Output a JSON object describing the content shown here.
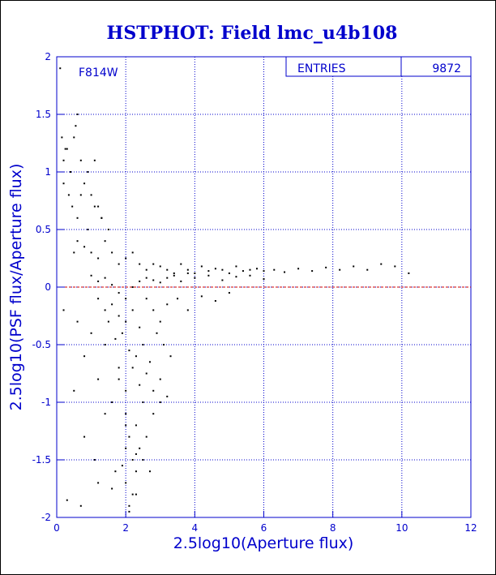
{
  "chart_data": {
    "type": "scatter",
    "title": "HSTPHOT: Field lmc_u4b108",
    "xlabel": "2.5log10(Aperture flux)",
    "ylabel": "2.5log10(PSF flux/Aperture flux)",
    "xlim": [
      0,
      12
    ],
    "ylim": [
      -2,
      2
    ],
    "x_ticks": [
      0,
      2,
      4,
      6,
      8,
      10,
      12
    ],
    "y_ticks": [
      -2,
      -1.5,
      -1,
      -0.5,
      0,
      0.5,
      1,
      1.5,
      2
    ],
    "x_tick_labels": [
      "0",
      "2",
      "4",
      "6",
      "8",
      "10",
      "12"
    ],
    "y_tick_labels": [
      "-2",
      "-1.5",
      "-1",
      "-0.5",
      "0",
      "0.5",
      "1",
      "1.5",
      "2"
    ],
    "grid": true,
    "reference_line_y": 0,
    "series": [
      {
        "name": "F814W",
        "x": [
          0.1,
          0.15,
          0.2,
          0.3,
          0.4,
          0.5,
          0.55,
          0.6,
          0.7,
          0.8,
          0.9,
          1.0,
          1.1,
          1.2,
          1.3,
          0.2,
          0.25,
          0.35,
          0.45,
          0.6,
          0.7,
          0.9,
          1.1,
          1.3,
          1.5,
          0.5,
          0.6,
          0.8,
          1.0,
          1.2,
          1.4,
          1.6,
          1.8,
          2.0,
          2.2,
          2.4,
          2.6,
          2.8,
          3.0,
          3.2,
          3.4,
          3.6,
          3.8,
          4.0,
          4.2,
          4.4,
          4.6,
          4.8,
          5.0,
          5.2,
          5.4,
          5.6,
          5.8,
          6.0,
          6.3,
          6.6,
          7.0,
          7.4,
          7.8,
          8.2,
          8.6,
          9.0,
          9.4,
          9.8,
          10.2,
          1.0,
          1.2,
          1.4,
          1.6,
          1.8,
          2.0,
          2.2,
          2.4,
          2.6,
          2.8,
          3.0,
          3.2,
          3.4,
          3.6,
          3.8,
          4.0,
          4.4,
          4.8,
          5.2,
          5.6,
          6.0,
          1.2,
          1.4,
          1.6,
          1.8,
          2.0,
          2.2,
          2.4,
          2.6,
          2.8,
          3.0,
          3.2,
          3.5,
          3.8,
          4.2,
          4.6,
          5.0,
          1.5,
          1.7,
          1.9,
          2.1,
          2.3,
          2.5,
          2.7,
          2.9,
          3.1,
          3.3,
          1.8,
          2.0,
          2.2,
          2.4,
          2.6,
          2.8,
          3.0,
          3.2,
          2.0,
          2.1,
          2.2,
          2.3,
          2.4,
          2.5,
          2.6,
          2.8,
          3.0,
          2.0,
          2.1,
          2.2,
          2.3,
          2.5,
          2.7,
          0.6,
          0.8,
          1.0,
          1.2,
          1.4,
          1.6,
          1.8,
          2.0,
          0.2,
          0.5,
          0.8,
          1.1,
          1.4,
          1.7,
          2.0,
          2.3,
          0.3,
          0.7,
          1.2,
          1.6,
          1.9,
          2.1,
          2.3
        ],
        "y": [
          1.9,
          1.3,
          1.1,
          1.2,
          1.0,
          1.3,
          1.4,
          1.5,
          1.1,
          0.9,
          1.0,
          0.8,
          1.1,
          0.7,
          0.6,
          0.9,
          1.2,
          0.8,
          0.7,
          0.6,
          0.8,
          0.5,
          0.7,
          0.6,
          0.5,
          0.3,
          0.4,
          0.35,
          0.3,
          0.25,
          0.4,
          0.3,
          0.2,
          0.25,
          0.3,
          0.2,
          0.15,
          0.2,
          0.18,
          0.15,
          0.12,
          0.2,
          0.15,
          0.12,
          0.18,
          0.14,
          0.16,
          0.15,
          0.12,
          0.18,
          0.14,
          0.15,
          0.16,
          0.14,
          0.15,
          0.13,
          0.16,
          0.14,
          0.17,
          0.15,
          0.18,
          0.15,
          0.2,
          0.18,
          0.12,
          0.1,
          0.05,
          0.08,
          0.02,
          -0.05,
          -0.1,
          0.0,
          0.05,
          0.08,
          0.06,
          0.04,
          0.08,
          0.1,
          0.05,
          0.12,
          0.08,
          0.1,
          0.06,
          0.09,
          0.1,
          0.07,
          -0.1,
          -0.2,
          -0.15,
          -0.25,
          -0.3,
          -0.2,
          -0.35,
          -0.1,
          -0.2,
          -0.3,
          -0.15,
          -0.1,
          -0.2,
          -0.08,
          -0.12,
          -0.05,
          -0.3,
          -0.45,
          -0.4,
          -0.55,
          -0.6,
          -0.5,
          -0.65,
          -0.4,
          -0.5,
          -0.6,
          -0.8,
          -0.9,
          -0.7,
          -0.85,
          -0.75,
          -0.9,
          -0.8,
          -0.95,
          -1.1,
          -1.3,
          -1.5,
          -1.2,
          -1.4,
          -1.0,
          -1.3,
          -1.1,
          -1.0,
          -1.7,
          -1.9,
          -1.8,
          -1.6,
          -1.5,
          -1.6,
          -0.3,
          -0.6,
          -0.4,
          -0.8,
          -0.5,
          -1.0,
          -0.7,
          -1.2,
          -0.2,
          -0.9,
          -1.3,
          -1.5,
          -1.1,
          -1.6,
          -1.4,
          -1.8,
          -1.85,
          -1.9,
          -1.7,
          -1.75,
          -1.55,
          -1.95,
          -1.45
        ]
      }
    ],
    "stats_box": {
      "label": "ENTRIES",
      "value": "9872"
    },
    "colors": {
      "title": "#0000cc",
      "axis": "#0000cc",
      "grid": "#0000cc",
      "points": "#000000",
      "reference_line": "#cc0000"
    }
  }
}
